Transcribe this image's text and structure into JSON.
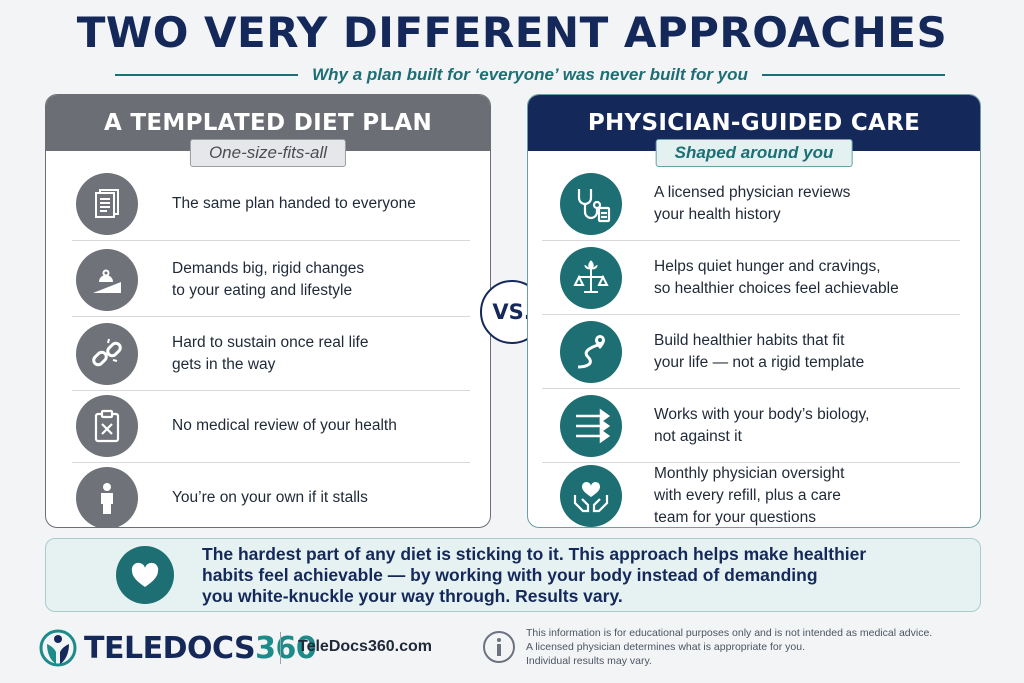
{
  "title": "TWO VERY DIFFERENT APPROACHES",
  "subtitle": "Why a plan built for ‘everyone’ was never built for you",
  "left_panel": {
    "heading": "A TEMPLATED DIET PLAN",
    "tagline": "One-size-fits-all",
    "rows": [
      {
        "icon": "documents-icon",
        "text": "The same plan handed to everyone"
      },
      {
        "icon": "weight-on-slope-icon",
        "text": "Demands big, rigid changes\nto your eating and lifestyle"
      },
      {
        "icon": "broken-chain-icon",
        "text": "Hard to sustain once real life\ngets in the way"
      },
      {
        "icon": "clipboard-x-icon",
        "text": "No medical review of your health"
      },
      {
        "icon": "person-icon",
        "text": "You’re on your own if it stalls"
      }
    ]
  },
  "vs_label": "VS.",
  "right_panel": {
    "heading": "PHYSICIAN-GUIDED CARE",
    "tagline": "Shaped around you",
    "rows": [
      {
        "icon": "stethoscope-icon",
        "text": "A licensed physician reviews\nyour health history"
      },
      {
        "icon": "balance-scale-icon",
        "text": "Helps quiet hunger and cravings,\nso healthier choices feel achievable"
      },
      {
        "icon": "path-pin-icon",
        "text": "Build healthier habits that fit\nyour life — not a rigid template"
      },
      {
        "icon": "arrows-icon",
        "text": "Works with your body’s biology,\nnot against it"
      },
      {
        "icon": "heart-hands-icon",
        "text": "Monthly physician oversight\nwith every refill, plus a care\nteam for your questions"
      }
    ]
  },
  "callout": {
    "icon": "heart-icon",
    "text": "The hardest part of any diet is sticking to it. This approach helps make healthier\nhabits feel achievable — by working with your body instead of demanding\nyou white-knuckle your way through. Results vary."
  },
  "footer": {
    "brand_a": "TELEDOCS",
    "brand_b": "360",
    "website": "TeleDocs360.com",
    "disclaimer": "This information is for educational purposes only and is not intended as medical advice.\nA licensed physician determines what is appropriate for you.\nIndividual results may vary."
  },
  "colors": {
    "navy": "#14285a",
    "teal": "#1d6f74",
    "gray": "#6b6e74"
  }
}
